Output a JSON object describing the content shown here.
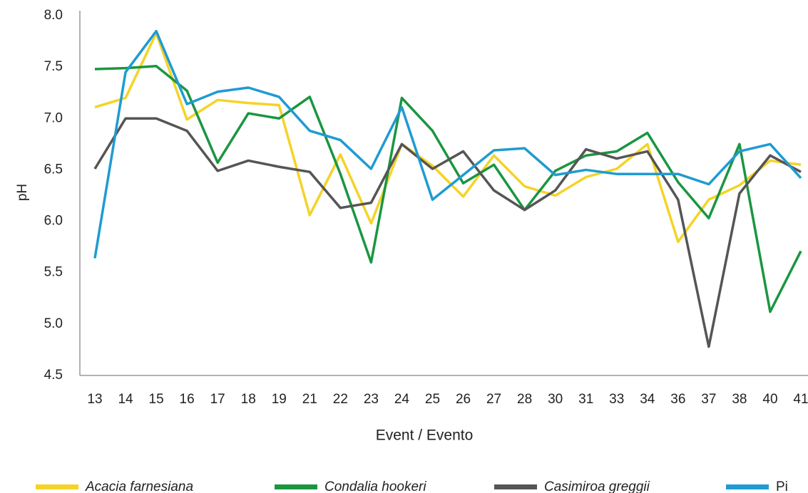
{
  "chart_data": {
    "type": "line",
    "y_label": "pH",
    "x_label": "Event / Evento",
    "categories": [
      "13",
      "14",
      "15",
      "16",
      "17",
      "18",
      "19",
      "21",
      "22",
      "23",
      "24",
      "25",
      "26",
      "27",
      "28",
      "30",
      "31",
      "33",
      "34",
      "36",
      "37",
      "38",
      "40",
      "41"
    ],
    "ylim": [
      4.5,
      8.0
    ],
    "yticks": [
      4.5,
      {
        "value": 5.0,
        "label": "5.0"
      },
      5.5,
      {
        "value": 6.0,
        "label": "6.0"
      },
      6.5,
      {
        "value": 7.0,
        "label": "7.0"
      },
      7.5,
      {
        "value": 8.0,
        "label": "8.0"
      }
    ],
    "grid": false,
    "legend": "bottom",
    "series": [
      {
        "name": "Acacia farnesiana",
        "color": "#f5d327",
        "values": [
          7.11,
          7.2,
          7.83,
          6.99,
          7.18,
          7.15,
          7.13,
          6.06,
          6.65,
          5.98,
          6.75,
          6.54,
          6.24,
          6.64,
          6.34,
          6.25,
          6.43,
          6.51,
          6.75,
          5.8,
          6.21,
          6.35,
          6.59,
          6.55
        ]
      },
      {
        "name": "Condalia hookeri",
        "color": "#1a9641",
        "values": [
          7.48,
          7.49,
          7.51,
          7.27,
          6.57,
          7.05,
          7.0,
          7.21,
          6.46,
          5.6,
          7.2,
          6.88,
          6.37,
          6.55,
          6.11,
          6.49,
          6.64,
          6.68,
          6.86,
          6.38,
          6.03,
          6.75,
          5.12,
          5.71
        ]
      },
      {
        "name": "Casimiroa greggii",
        "color": "#555555",
        "values": [
          6.51,
          7.0,
          7.0,
          6.88,
          6.49,
          6.59,
          6.53,
          6.48,
          6.13,
          6.18,
          6.75,
          6.51,
          6.68,
          6.3,
          6.11,
          6.3,
          6.7,
          6.61,
          6.68,
          6.21,
          4.78,
          6.27,
          6.64,
          6.48
        ]
      },
      {
        "name": "Pi",
        "color": "#1f9bd1",
        "values": [
          5.64,
          7.45,
          7.85,
          7.14,
          7.26,
          7.3,
          7.21,
          6.88,
          6.79,
          6.51,
          7.11,
          6.21,
          6.45,
          6.69,
          6.71,
          6.45,
          6.5,
          6.46,
          6.46,
          6.46,
          6.36,
          6.68,
          6.75,
          6.42
        ]
      }
    ]
  }
}
